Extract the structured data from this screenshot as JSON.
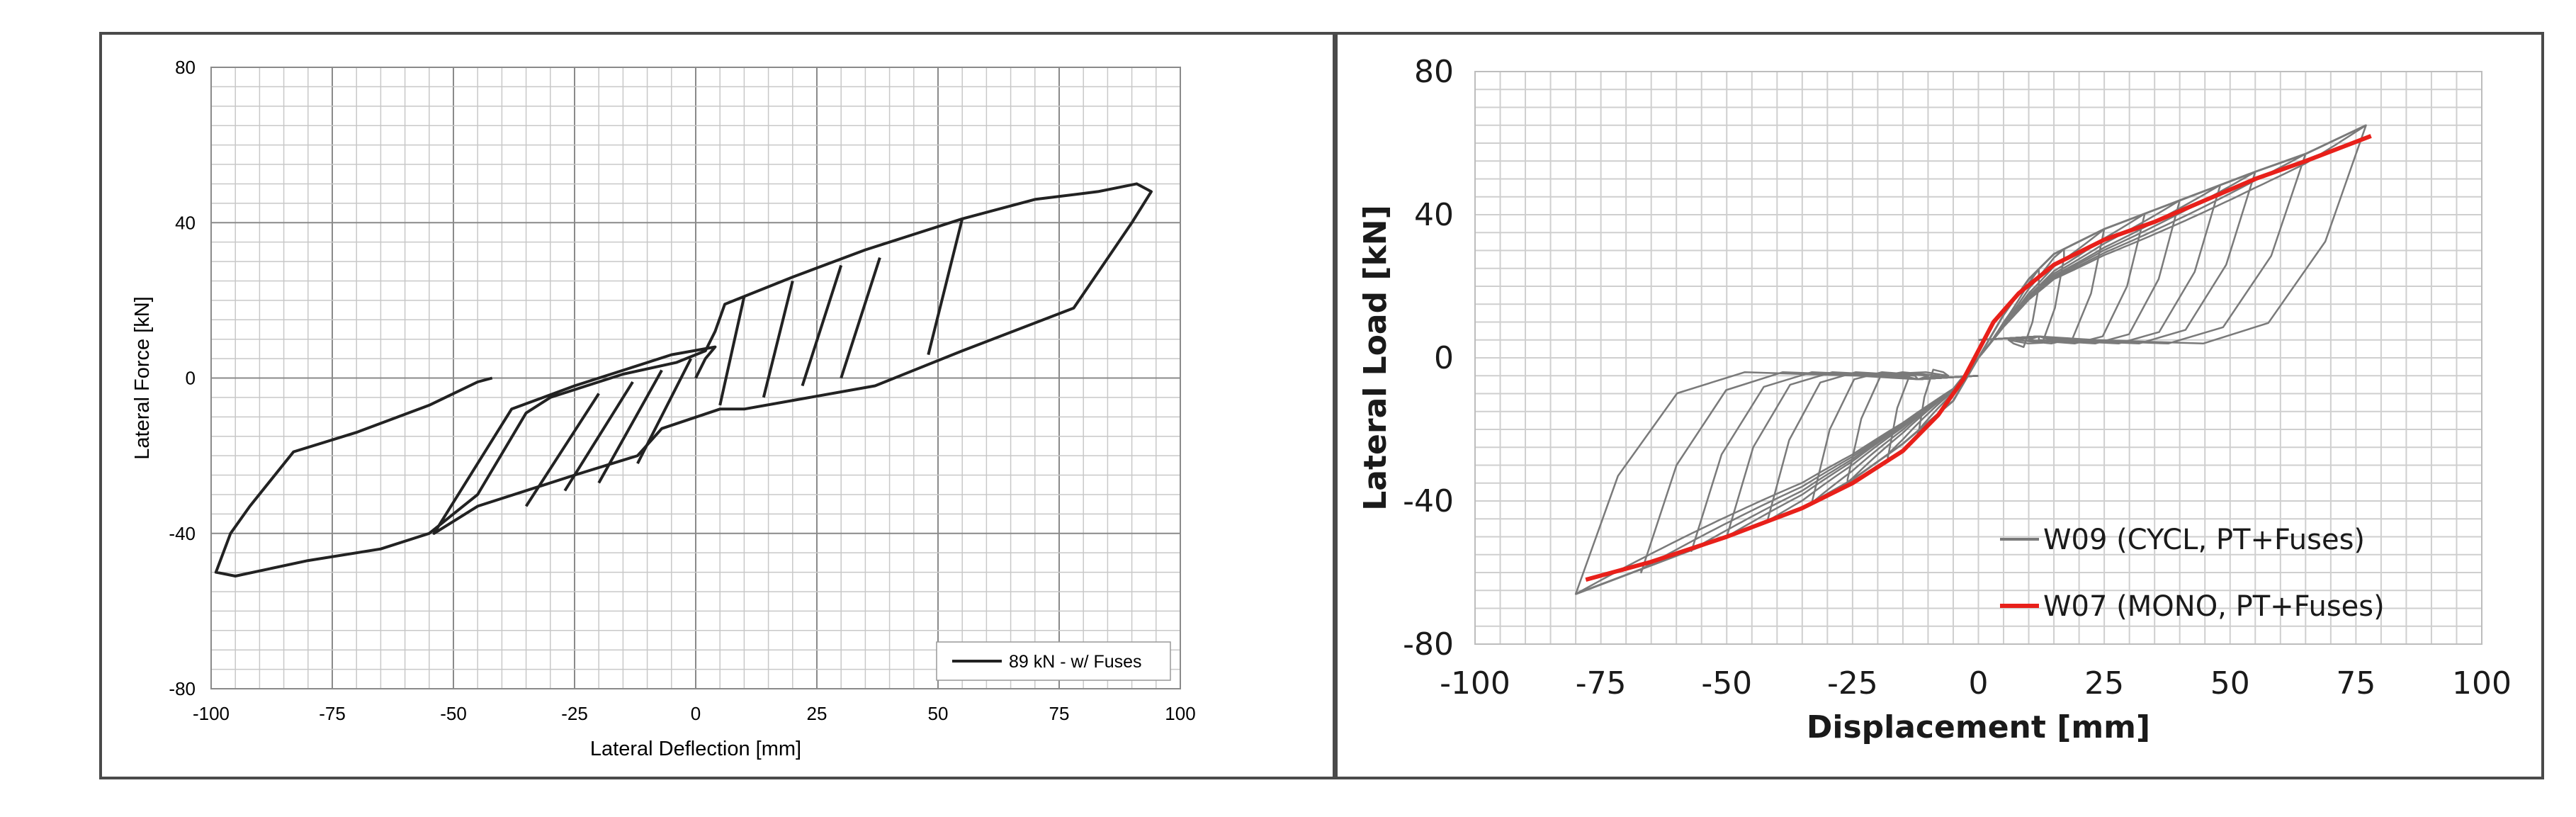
{
  "chart_data": [
    {
      "type": "line",
      "title": "",
      "xlabel": "Lateral Deflection [mm]",
      "ylabel": "Lateral Force [kN]",
      "xlim": [
        -100,
        100
      ],
      "ylim": [
        -80,
        80
      ],
      "xticks": [
        -100,
        -75,
        -50,
        -25,
        0,
        25,
        50,
        75,
        100
      ],
      "yticks": [
        -80,
        -40,
        0,
        40,
        80
      ],
      "grid": true,
      "legend_position": "bottom-right",
      "colors": {
        "series": "#222222",
        "grid_major": "#8a8a8a",
        "grid_minor": "#c8c8c8"
      },
      "series": [
        {
          "name": "89 kN - w/ Fuses",
          "points": [
            [
              0,
              0
            ],
            [
              2,
              5
            ],
            [
              4,
              8
            ],
            [
              -5,
              6
            ],
            [
              -10,
              4
            ],
            [
              -25,
              -2
            ],
            [
              -38,
              -8
            ],
            [
              -54,
              -40
            ],
            [
              -45,
              -33
            ],
            [
              -25,
              -25
            ],
            [
              -12,
              -20
            ],
            [
              -7,
              -13
            ],
            [
              5,
              -8
            ],
            [
              10,
              -8
            ],
            [
              37,
              -2
            ],
            [
              55,
              7
            ],
            [
              78,
              18
            ],
            [
              90,
              40
            ],
            [
              94,
              48
            ],
            [
              91,
              50
            ],
            [
              83,
              48
            ],
            [
              70,
              46
            ],
            [
              55,
              41
            ],
            [
              35,
              33
            ],
            [
              20,
              26
            ],
            [
              10,
              21
            ],
            [
              6,
              19
            ],
            [
              4,
              12
            ],
            [
              2,
              7
            ],
            [
              -4,
              4
            ],
            [
              -15,
              1
            ],
            [
              -30,
              -5
            ],
            [
              -35,
              -9
            ],
            [
              -45,
              -30
            ],
            [
              -55,
              -40
            ],
            [
              -65,
              -44
            ],
            [
              -80,
              -47
            ],
            [
              -95,
              -51
            ],
            [
              -99,
              -50
            ],
            [
              -96,
              -40
            ],
            [
              -92,
              -33
            ],
            [
              -83,
              -19
            ],
            [
              -70,
              -14
            ],
            [
              -55,
              -7
            ],
            [
              -45,
              -1
            ],
            [
              -42,
              0
            ]
          ],
          "reload_segments": [
            [
              [
                -35,
                -33
              ],
              [
                -20,
                -4
              ]
            ],
            [
              [
                -27,
                -29
              ],
              [
                -13,
                -1
              ]
            ],
            [
              [
                -20,
                -27
              ],
              [
                -7,
                2
              ]
            ],
            [
              [
                -12,
                -22
              ],
              [
                -1,
                5
              ]
            ],
            [
              [
                5,
                -7
              ],
              [
                10,
                21
              ]
            ],
            [
              [
                14,
                -5
              ],
              [
                20,
                25
              ]
            ],
            [
              [
                22,
                -2
              ],
              [
                30,
                29
              ]
            ],
            [
              [
                30,
                0
              ],
              [
                38,
                31
              ]
            ],
            [
              [
                48,
                6
              ],
              [
                55,
                41
              ]
            ]
          ]
        }
      ]
    },
    {
      "type": "line",
      "title": "",
      "xlabel": "Displacement [mm]",
      "ylabel": "Lateral Load [kN]",
      "xlim": [
        -100,
        100
      ],
      "ylim": [
        -80,
        80
      ],
      "xticks": [
        -100,
        -75,
        -50,
        -25,
        0,
        25,
        50,
        75,
        100
      ],
      "yticks": [
        -80,
        -40,
        0,
        40,
        80
      ],
      "grid": true,
      "legend_position": "bottom-right",
      "colors": {
        "cycl": "#7a7a7a",
        "mono": "#e8201a",
        "grid": "#cfcfcf"
      },
      "series": [
        {
          "name": "W09 (CYCL, PT+Fuses)",
          "envelope_pos": [
            [
              0,
              0
            ],
            [
              5,
              12
            ],
            [
              10,
              22
            ],
            [
              15,
              29
            ],
            [
              25,
              36
            ],
            [
              40,
              44
            ],
            [
              55,
              52
            ],
            [
              65,
              57
            ],
            [
              77,
              65
            ]
          ],
          "envelope_neg": [
            [
              0,
              0
            ],
            [
              -5,
              -12
            ],
            [
              -15,
              -24
            ],
            [
              -25,
              -34
            ],
            [
              -35,
              -42
            ],
            [
              -50,
              -50
            ],
            [
              -65,
              -58
            ],
            [
              -80,
              -66
            ]
          ],
          "loop_peaks_pos": [
            [
              12,
              20
            ],
            [
              17,
              28
            ],
            [
              25,
              36
            ],
            [
              33,
              40
            ],
            [
              40,
              44
            ],
            [
              48,
              48
            ],
            [
              55,
              52
            ],
            [
              65,
              57
            ],
            [
              77,
              65
            ]
          ],
          "loop_peaks_neg": [
            [
              -12,
              -22
            ],
            [
              -18,
              -28
            ],
            [
              -26,
              -34
            ],
            [
              -33,
              -40
            ],
            [
              -42,
              -46
            ],
            [
              -50,
              -50
            ],
            [
              -57,
              -54
            ],
            [
              -67,
              -60
            ],
            [
              -80,
              -66
            ]
          ]
        },
        {
          "name": "W07 (MONO, PT+Fuses)",
          "points": [
            [
              -78,
              -62
            ],
            [
              -65,
              -57
            ],
            [
              -50,
              -50
            ],
            [
              -35,
              -42
            ],
            [
              -25,
              -35
            ],
            [
              -15,
              -26
            ],
            [
              -8,
              -16
            ],
            [
              -3,
              -6
            ],
            [
              0,
              2
            ],
            [
              3,
              10
            ],
            [
              8,
              18
            ],
            [
              15,
              26
            ],
            [
              25,
              33
            ],
            [
              35,
              38
            ],
            [
              45,
              44
            ],
            [
              55,
              50
            ],
            [
              65,
              55
            ],
            [
              78,
              62
            ]
          ]
        }
      ]
    }
  ]
}
